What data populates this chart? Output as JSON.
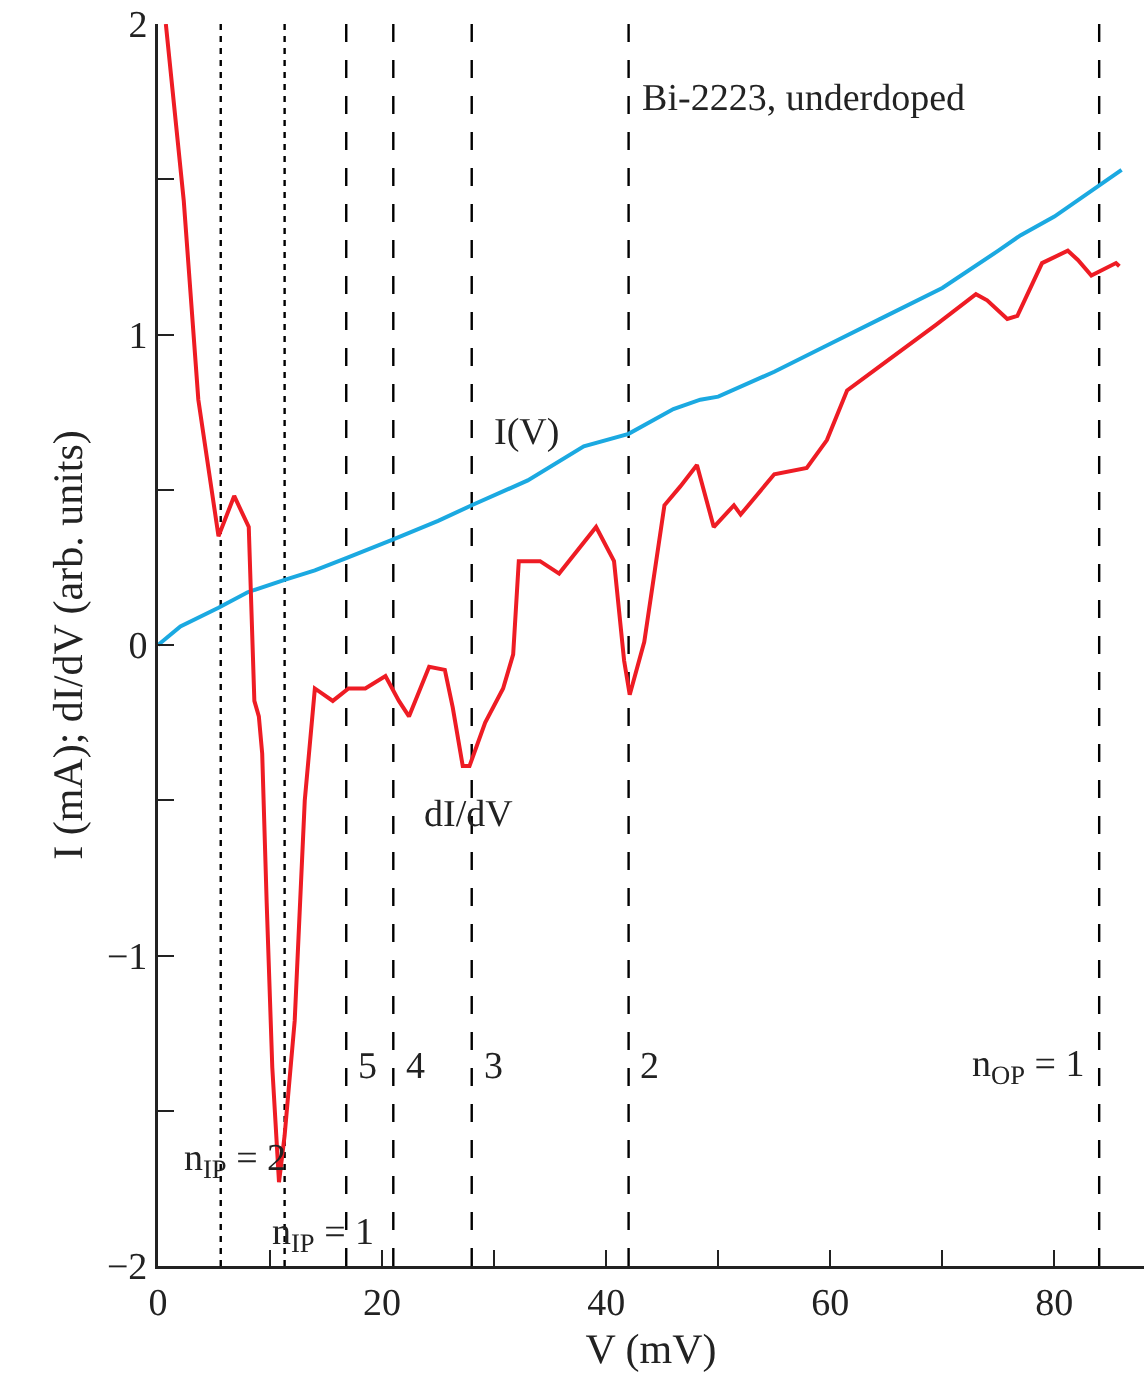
{
  "chart_data": {
    "type": "line",
    "title": "Bi-2223, underdoped",
    "xlabel": "V (mV)",
    "ylabel": "I (mA); dI/dV (arb. units)",
    "series": [
      {
        "name": "I(V)",
        "color": "#1ba9e1",
        "x": [
          0,
          2,
          5.4,
          8,
          11.3,
          14,
          16.8,
          21,
          25,
          28,
          33,
          38,
          42,
          46,
          48.4,
          50,
          55,
          60,
          65,
          70,
          75,
          77,
          80,
          86
        ],
        "values": [
          0,
          0.06,
          0.12,
          0.17,
          0.21,
          0.24,
          0.28,
          0.34,
          0.4,
          0.45,
          0.53,
          0.64,
          0.68,
          0.76,
          0.79,
          0.8,
          0.88,
          0.97,
          1.06,
          1.15,
          1.27,
          1.32,
          1.38,
          1.53
        ]
      },
      {
        "name": "dI/dV",
        "color": "#ee1c24",
        "x": [
          0.7,
          2.3,
          3.6,
          5.4,
          6.8,
          8.1,
          8.6,
          9.0,
          9.3,
          9.7,
          10.2,
          10.8,
          11.3,
          12.2,
          13.1,
          14.0,
          15.6,
          17.0,
          18.5,
          20.3,
          21.5,
          22.4,
          24.2,
          25.6,
          26.3,
          27.2,
          27.8,
          29.2,
          30.8,
          31.7,
          32.2,
          34.1,
          35.8,
          39.1,
          40.7,
          41.6,
          42.1,
          43.4,
          45.2,
          46.6,
          48.1,
          49.6,
          51.4,
          52.0,
          55.0,
          57.9,
          59.7,
          61.5,
          64.5,
          69.4,
          73.0,
          74.0,
          75.8,
          76.7,
          78.9,
          81.2,
          82.1,
          83.3,
          85.5,
          85.8
        ],
        "values": [
          2.0,
          1.43,
          0.79,
          0.35,
          0.48,
          0.38,
          -0.18,
          -0.23,
          -0.35,
          -0.83,
          -1.36,
          -1.73,
          -1.58,
          -1.21,
          -0.5,
          -0.14,
          -0.18,
          -0.14,
          -0.14,
          -0.1,
          -0.18,
          -0.23,
          -0.07,
          -0.08,
          -0.2,
          -0.39,
          -0.39,
          -0.25,
          -0.14,
          -0.03,
          0.27,
          0.27,
          0.23,
          0.38,
          0.27,
          -0.05,
          -0.16,
          0.01,
          0.45,
          0.51,
          0.58,
          0.38,
          0.45,
          0.42,
          0.55,
          0.57,
          0.66,
          0.82,
          0.9,
          1.03,
          1.13,
          1.11,
          1.05,
          1.06,
          1.23,
          1.27,
          1.24,
          1.19,
          1.23,
          1.22
        ]
      }
    ],
    "xlim": [
      0,
      88
    ],
    "ylim": [
      -2,
      2
    ],
    "xticks": [
      0,
      {
        "value": 10,
        "label": null
      },
      20,
      {
        "value": 30,
        "label": null
      },
      40,
      {
        "value": 50,
        "label": null
      },
      60,
      {
        "value": 70,
        "label": null
      },
      80
    ],
    "yticks": [
      -2,
      {
        "value": -1.5,
        "label": null
      },
      -1,
      {
        "value": -0.5,
        "label": null
      },
      0,
      {
        "value": 0.5,
        "label": null
      },
      1,
      {
        "value": 1.5,
        "label": null
      },
      2
    ],
    "ref_lines": [
      {
        "axis": "x",
        "value": 5.6,
        "line_style": "dotted",
        "color": "#000000"
      },
      {
        "axis": "x",
        "value": 11.3,
        "line_style": "dotted",
        "color": "#000000"
      },
      {
        "axis": "x",
        "value": 16.8,
        "line_style": "dashed",
        "color": "#000000"
      },
      {
        "axis": "x",
        "value": 21,
        "line_style": "dashed",
        "color": "#000000"
      },
      {
        "axis": "x",
        "value": 28,
        "line_style": "dashed",
        "color": "#000000"
      },
      {
        "axis": "x",
        "value": 42,
        "line_style": "dashed",
        "color": "#000000"
      },
      {
        "axis": "x",
        "value": 84,
        "line_style": "dashed",
        "color": "#000000"
      }
    ],
    "annotations": [
      "n$_{IP}$ = 2",
      "n$_{IP}$ = 1",
      "5",
      "4",
      "3",
      "2",
      "n$_{OP}$ = 1"
    ],
    "grid": false,
    "legend": false,
    "line_style": "solid",
    "marker": "none"
  }
}
